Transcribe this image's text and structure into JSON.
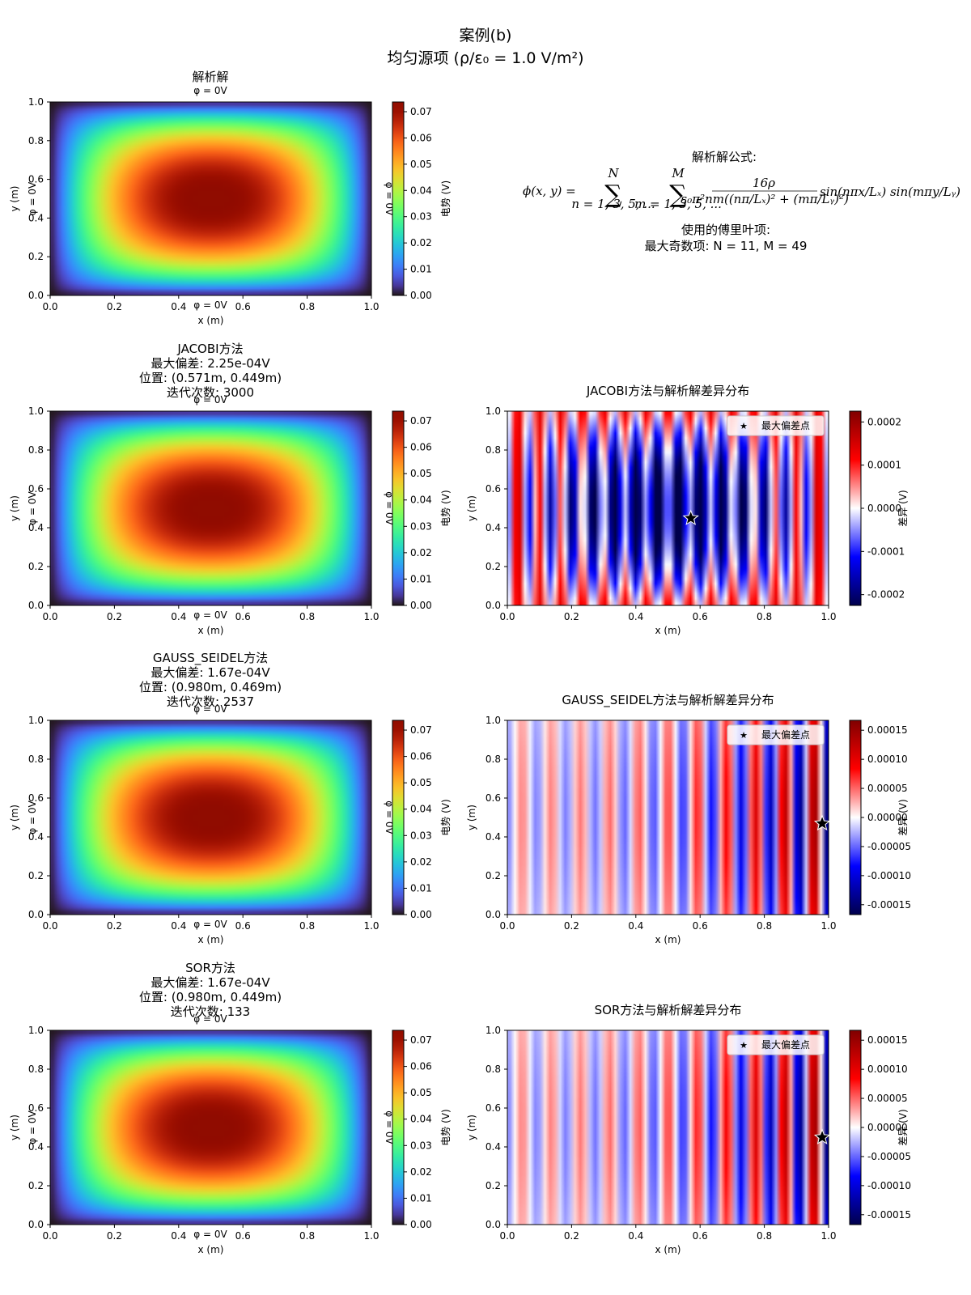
{
  "figure": {
    "title_line1": "案例(b)",
    "title_line2": "均匀源项 (ρ/ε₀ = 1.0 V/m²)"
  },
  "analytic_panel": {
    "title": "解析解",
    "formula_heading": "解析解公式:",
    "formula_lhs": "ϕ(x, y) =",
    "sum1_upper": "N",
    "sum1_lower": "n = 1, 3, 5, ...",
    "sum2_upper": "M",
    "sum2_lower": "m = 1, 3, 5, ...",
    "frac_num": "16ρ",
    "frac_den": "ε₀π²nm((nπ/Lₓ)² + (mπ/Lᵧ)²)",
    "trig": "sin(nπx/Lₓ) sin(mπy/Lᵧ)",
    "fourier_heading": "使用的傅里叶项:",
    "fourier_terms": "最大奇数项: N = 11, M = 49"
  },
  "common": {
    "xlabel": "x (m)",
    "ylabel": "y (m)",
    "colorbar_label": "电势 (V)",
    "diff_colorbar_label": "差异 (V)",
    "boundary_label": "φ = 0V",
    "legend_label": "最大偏差点",
    "axis_ticks": [
      "0.0",
      "0.2",
      "0.4",
      "0.6",
      "0.8",
      "1.0"
    ]
  },
  "methods": [
    {
      "name": "JACOBI方法",
      "line2": "最大偏差: 2.25e-04V",
      "line3": "位置: (0.571m, 0.449m)",
      "line4": "迭代次数: 3000",
      "diff_title": "JACOBI方法与解析解差异分布",
      "diff_cb_ticks": [
        "0.0002",
        "0.0001",
        "0.0000",
        "-0.0001",
        "-0.0002"
      ]
    },
    {
      "name": "GAUSS_SEIDEL方法",
      "line2": "最大偏差: 1.67e-04V",
      "line3": "位置: (0.980m, 0.469m)",
      "line4": "迭代次数: 2537",
      "diff_title": "GAUSS_SEIDEL方法与解析解差异分布",
      "diff_cb_ticks": [
        "0.00015",
        "0.00010",
        "0.00005",
        "0.00000",
        "-0.00005",
        "-0.00010",
        "-0.00015"
      ]
    },
    {
      "name": "SOR方法",
      "line2": "最大偏差: 1.67e-04V",
      "line3": "位置: (0.980m, 0.449m)",
      "line4": "迭代次数: 133",
      "diff_title": "SOR方法与解析解差异分布",
      "diff_cb_ticks": [
        "0.00015",
        "0.00010",
        "0.00005",
        "0.00000",
        "-0.00005",
        "-0.00010",
        "-0.00015"
      ]
    }
  ],
  "chart_data": [
    {
      "type": "heatmap",
      "title": "解析解",
      "xlabel": "x (m)",
      "ylabel": "y (m)",
      "xlim": [
        0,
        1
      ],
      "ylim": [
        0,
        1
      ],
      "colormap": "turbo",
      "colorbar_label": "电势 (V)",
      "colorbar_range": [
        0,
        0.0737
      ],
      "colorbar_ticks": [
        "0.00",
        "0.01",
        "0.02",
        "0.03",
        "0.04",
        "0.05",
        "0.06",
        "0.07"
      ],
      "peak": {
        "x": 0.5,
        "y": 0.5,
        "value": 0.0737
      }
    },
    {
      "type": "heatmap",
      "title": "JACOBI方法",
      "xlabel": "x (m)",
      "ylabel": "y (m)",
      "xlim": [
        0,
        1
      ],
      "ylim": [
        0,
        1
      ],
      "colormap": "turbo",
      "colorbar_label": "电势 (V)",
      "colorbar_range": [
        0,
        0.0737
      ],
      "colorbar_ticks": [
        "0.00",
        "0.01",
        "0.02",
        "0.03",
        "0.04",
        "0.05",
        "0.06",
        "0.07"
      ]
    },
    {
      "type": "heatmap",
      "title": "JACOBI方法与解析解差异分布",
      "xlabel": "x (m)",
      "ylabel": "y (m)",
      "xlim": [
        0,
        1
      ],
      "ylim": [
        0,
        1
      ],
      "colormap": "seismic",
      "colorbar_label": "差异 (V)",
      "colorbar_range": [
        -0.000225,
        0.000225
      ],
      "colorbar_ticks": [
        0.0002,
        0.0001,
        0.0,
        -0.0001,
        -0.0002
      ],
      "max_deviation_point": {
        "x": 0.571,
        "y": 0.449,
        "value": 0.000225
      },
      "legend": [
        "最大偏差点"
      ],
      "legend_position": "top-right"
    },
    {
      "type": "heatmap",
      "title": "GAUSS_SEIDEL方法",
      "xlabel": "x (m)",
      "ylabel": "y (m)",
      "xlim": [
        0,
        1
      ],
      "ylim": [
        0,
        1
      ],
      "colormap": "turbo",
      "colorbar_label": "电势 (V)",
      "colorbar_range": [
        0,
        0.0737
      ],
      "colorbar_ticks": [
        "0.00",
        "0.01",
        "0.02",
        "0.03",
        "0.04",
        "0.05",
        "0.06",
        "0.07"
      ]
    },
    {
      "type": "heatmap",
      "title": "GAUSS_SEIDEL方法与解析解差异分布",
      "xlabel": "x (m)",
      "ylabel": "y (m)",
      "xlim": [
        0,
        1
      ],
      "ylim": [
        0,
        1
      ],
      "colormap": "seismic",
      "colorbar_label": "差异 (V)",
      "colorbar_range": [
        -0.000167,
        0.000167
      ],
      "colorbar_ticks": [
        0.00015,
        0.0001,
        5e-05,
        0.0,
        -5e-05,
        -0.0001,
        -0.00015
      ],
      "max_deviation_point": {
        "x": 0.98,
        "y": 0.469,
        "value": 0.000167
      },
      "legend": [
        "最大偏差点"
      ],
      "legend_position": "top-right"
    },
    {
      "type": "heatmap",
      "title": "SOR方法",
      "xlabel": "x (m)",
      "ylabel": "y (m)",
      "xlim": [
        0,
        1
      ],
      "ylim": [
        0,
        1
      ],
      "colormap": "turbo",
      "colorbar_label": "电势 (V)",
      "colorbar_range": [
        0,
        0.0737
      ],
      "colorbar_ticks": [
        "0.00",
        "0.01",
        "0.02",
        "0.03",
        "0.04",
        "0.05",
        "0.06",
        "0.07"
      ]
    },
    {
      "type": "heatmap",
      "title": "SOR方法与解析解差异分布",
      "xlabel": "x (m)",
      "ylabel": "y (m)",
      "xlim": [
        0,
        1
      ],
      "ylim": [
        0,
        1
      ],
      "colormap": "seismic",
      "colorbar_label": "差异 (V)",
      "colorbar_range": [
        -0.000167,
        0.000167
      ],
      "colorbar_ticks": [
        0.00015,
        0.0001,
        5e-05,
        0.0,
        -5e-05,
        -0.0001,
        -0.00015
      ],
      "max_deviation_point": {
        "x": 0.98,
        "y": 0.449,
        "value": 0.000167
      },
      "legend": [
        "最大偏差点"
      ],
      "legend_position": "top-right"
    }
  ]
}
